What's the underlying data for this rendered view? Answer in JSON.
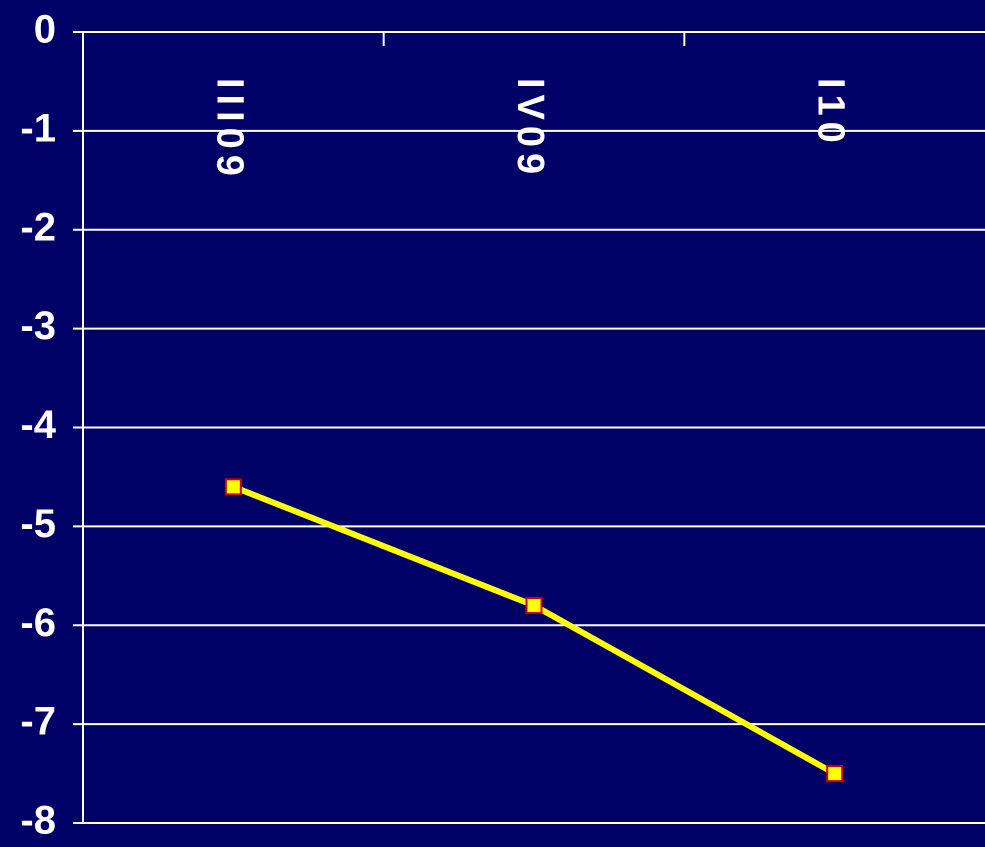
{
  "chart_data": {
    "type": "line",
    "categories": [
      "III09",
      "IV09",
      "I10"
    ],
    "series": [
      {
        "values": [
          -4.6,
          -5.8,
          -7.5
        ]
      }
    ],
    "ylim": [
      -8,
      0
    ],
    "yticks": [
      "0",
      "-1",
      "-2",
      "-3",
      "-4",
      "-5",
      "-6",
      "-7",
      "-8"
    ],
    "xaxis_position": "top",
    "xtick_label_rotation": "vertical",
    "grid": true,
    "legend": "none"
  },
  "colors": {
    "background": "#000066",
    "gridline": "#ffffff",
    "axis_text": "#ffffff",
    "line": "#ffff00",
    "marker_fill": "#ffff00",
    "marker_stroke": "#cc0000"
  }
}
